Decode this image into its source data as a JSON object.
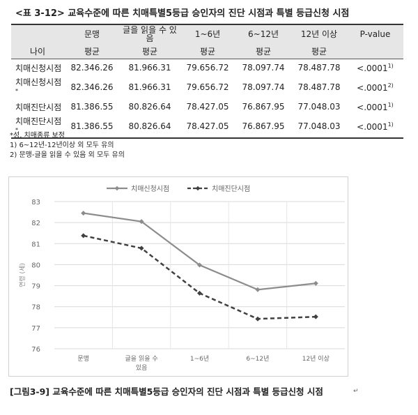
{
  "table": {
    "title": "<표 3-12> 교육수준에 따른 치매특별5등급 승인자의 진단 시점과 특별 등급신청 시점",
    "header_row_label": "나이",
    "columns": [
      "문맹",
      "글을 읽을 수 있음",
      "1~6년",
      "6~12년",
      "12년 이상",
      "P-value"
    ],
    "sub_header": "평균",
    "rows": [
      {
        "label": "치매신청시점",
        "label_mark": "",
        "values": [
          "82.346.26",
          "81.966.31",
          "79.656.72",
          "78.097.74",
          "78.487.78"
        ],
        "p_value": "<.0001",
        "p_mark": "1)"
      },
      {
        "label": "치매신청시점",
        "label_mark": "*",
        "values": [
          "82.346.26",
          "81.966.31",
          "79.656.72",
          "78.097.74",
          "78.487.78"
        ],
        "p_value": "<.0001",
        "p_mark": "2)"
      },
      {
        "label": "치매진단시점",
        "label_mark": "",
        "values": [
          "81.386.55",
          "80.826.64",
          "78.427.05",
          "76.867.95",
          "77.048.03"
        ],
        "p_value": "<.0001",
        "p_mark": "1)"
      },
      {
        "label": "치매진단시점",
        "label_mark": "*",
        "values": [
          "81.386.55",
          "80.826.64",
          "78.427.05",
          "76.867.95",
          "77.048.03"
        ],
        "p_value": "<.0001",
        "p_mark": "1)"
      }
    ],
    "notes": [
      "*성, 치매종류 보정",
      "1) 6~12년-12년이상 외 모두 유의",
      "2) 문맹-글을 읽을 수 있음 외 모두 유의"
    ]
  },
  "chart_data": {
    "type": "line",
    "categories": [
      "문맹",
      "글을 읽을 수 있음",
      "1~6년",
      "6~12년",
      "12년 이상"
    ],
    "series": [
      {
        "name": "치매신청시점",
        "values": [
          82.45,
          82.05,
          79.98,
          78.81,
          79.11
        ],
        "color": "#8c8c8c",
        "style": "solid",
        "marker": "diamond"
      },
      {
        "name": "치매진단시점",
        "values": [
          81.38,
          80.78,
          78.64,
          77.42,
          77.52
        ],
        "color": "#404040",
        "style": "dashed",
        "marker": "diamond"
      }
    ],
    "ylabel": "연령 (세)",
    "ylim": [
      76,
      83
    ],
    "yticks": [
      76,
      77,
      78,
      79,
      80,
      81,
      82,
      83
    ],
    "grid": true,
    "legend": "top"
  },
  "caption": "[그림3-9] 교육수준에 따른 치매특별5등급 승인자의 진단 시점과 특별 등급신청 시점",
  "caption_mark": "↵"
}
